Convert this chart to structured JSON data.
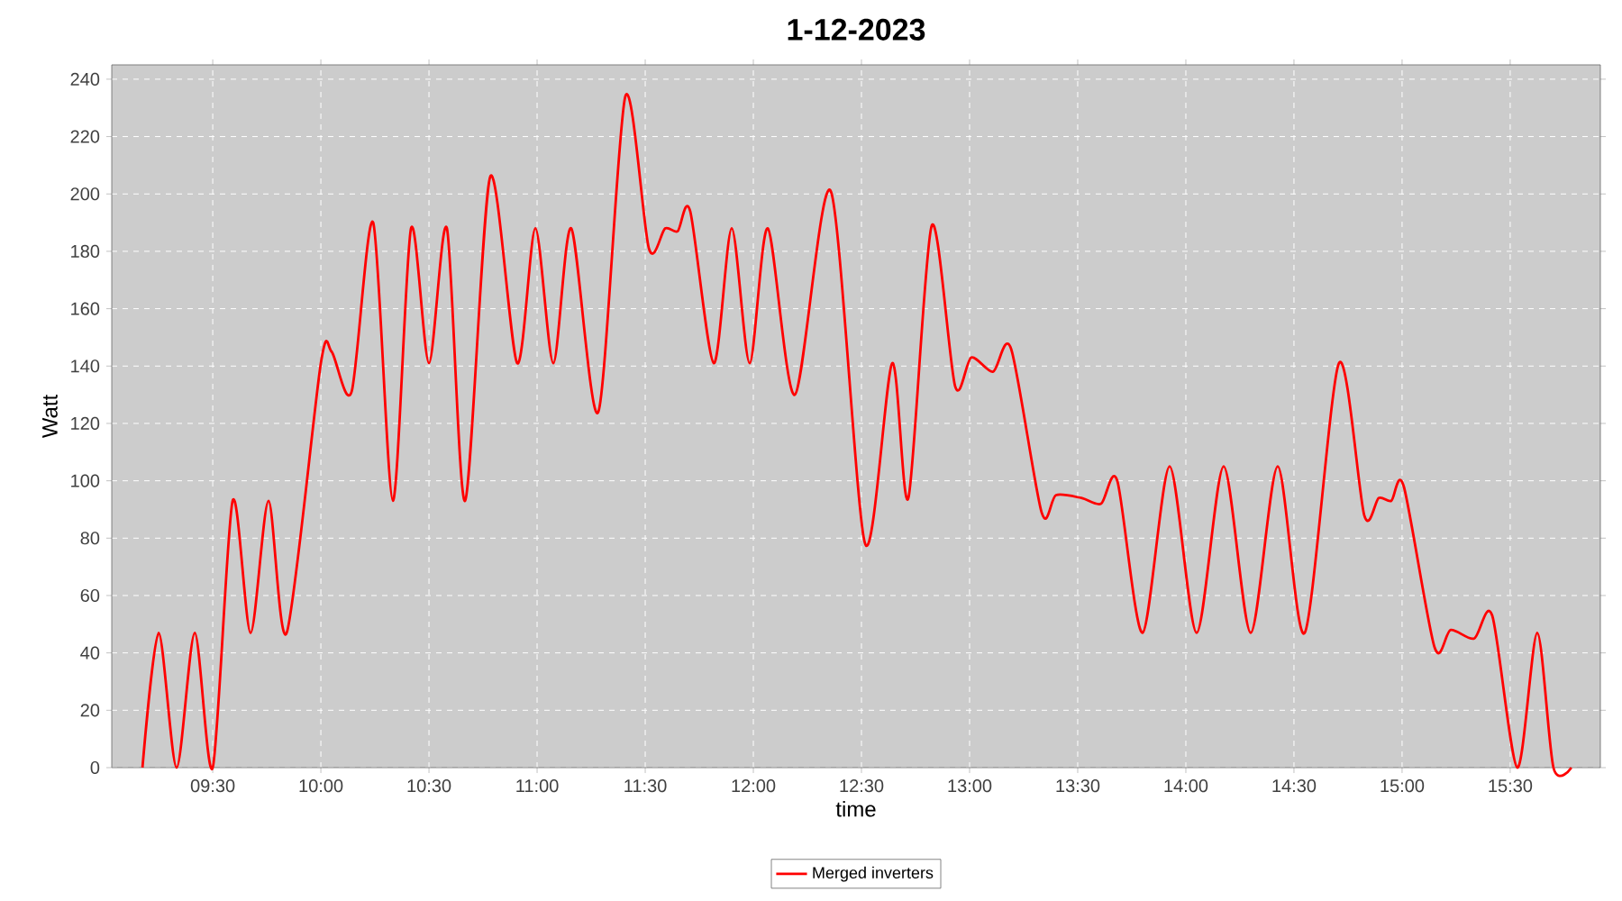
{
  "chart_data": {
    "type": "line",
    "title": "1-12-2023",
    "xlabel": "time",
    "ylabel": "Watt",
    "x": [
      9.175,
      9.25,
      9.333,
      9.417,
      9.5,
      9.592,
      9.675,
      9.758,
      9.842,
      10.0,
      10.05,
      10.142,
      10.242,
      10.333,
      10.417,
      10.5,
      10.583,
      10.667,
      10.783,
      10.908,
      10.992,
      11.075,
      11.158,
      11.283,
      11.408,
      11.517,
      11.592,
      11.65,
      11.708,
      11.817,
      11.9,
      11.983,
      12.067,
      12.192,
      12.358,
      12.517,
      12.642,
      12.717,
      12.825,
      12.933,
      13.008,
      13.108,
      13.192,
      13.333,
      13.4,
      13.517,
      13.608,
      13.683,
      13.8,
      13.925,
      14.05,
      14.175,
      14.3,
      14.425,
      14.55,
      14.708,
      14.825,
      14.892,
      14.95,
      15.008,
      15.15,
      15.225,
      15.333,
      15.417,
      15.533,
      15.625,
      15.7,
      15.783
    ],
    "series": [
      {
        "name": "Merged inverters",
        "color": "#ff0000",
        "values": [
          0,
          47,
          0,
          47,
          0,
          93,
          47,
          93,
          47,
          141,
          145,
          131,
          190,
          93,
          188,
          141,
          188,
          93,
          206,
          141,
          188,
          141,
          188,
          124,
          234,
          181,
          188,
          187,
          194,
          141,
          188,
          141,
          188,
          130,
          201,
          78,
          141,
          94,
          189,
          133,
          143,
          138,
          146,
          89,
          95,
          94,
          92,
          100,
          47,
          105,
          47,
          105,
          47,
          105,
          47,
          141,
          88,
          94,
          93,
          98,
          42,
          48,
          45,
          53,
          0,
          47,
          0,
          0
        ]
      }
    ],
    "xlim": [
      9.033,
      15.917
    ],
    "ylim": [
      0,
      245
    ],
    "xticks": [
      {
        "value": 9.5,
        "label": "09:30"
      },
      {
        "value": 10,
        "label": "10:00"
      },
      {
        "value": 10.5,
        "label": "10:30"
      },
      {
        "value": 11,
        "label": "11:00"
      },
      {
        "value": 11.5,
        "label": "11:30"
      },
      {
        "value": 12,
        "label": "12:00"
      },
      {
        "value": 12.5,
        "label": "12:30"
      },
      {
        "value": 13,
        "label": "13:00"
      },
      {
        "value": 13.5,
        "label": "13:30"
      },
      {
        "value": 14,
        "label": "14:00"
      },
      {
        "value": 14.5,
        "label": "14:30"
      },
      {
        "value": 15,
        "label": "15:00"
      },
      {
        "value": 15.5,
        "label": "15:30"
      }
    ],
    "yticks": [
      0,
      20,
      40,
      60,
      80,
      100,
      120,
      140,
      160,
      180,
      200,
      220,
      240
    ],
    "grid": true,
    "legend": "bottom",
    "marker": "none",
    "line_style": "solid"
  }
}
